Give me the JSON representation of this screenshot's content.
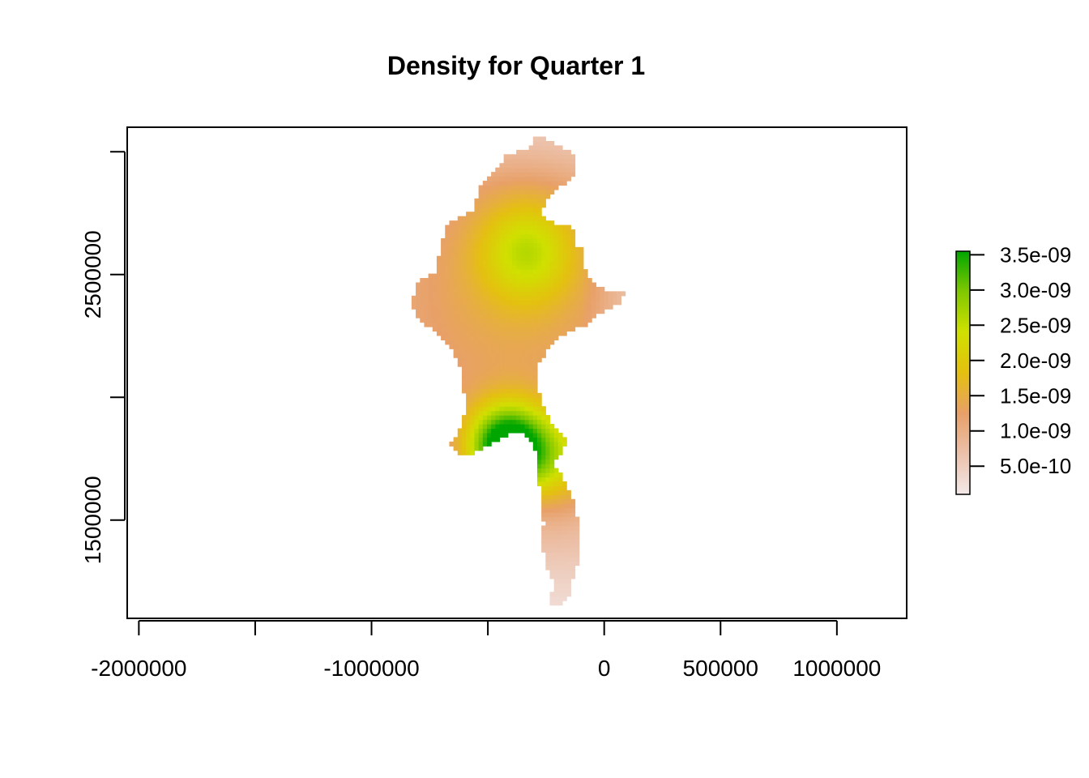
{
  "chart_data": {
    "type": "heatmap",
    "title": "Density for Quarter 1",
    "xlabel": "",
    "ylabel": "",
    "xlim": [
      -2050000,
      1300000
    ],
    "ylim": [
      1100000,
      3100000
    ],
    "x_ticks": [
      -2000000,
      -1500000,
      -1000000,
      -500000,
      0,
      500000,
      1000000
    ],
    "x_tick_labels": [
      "-2000000",
      "",
      "-1000000",
      "",
      "0",
      "500000",
      "1000000"
    ],
    "y_ticks": [
      1500000,
      2000000,
      2500000,
      3000000
    ],
    "y_tick_labels": [
      "1500000",
      "",
      "2500000",
      ""
    ],
    "legend": {
      "position": "right",
      "min": 1e-10,
      "max": 3.55e-09,
      "ticks": [
        5e-10,
        1e-09,
        1.5e-09,
        2e-09,
        2.5e-09,
        3e-09,
        3.5e-09
      ],
      "tick_labels": [
        "5.0e-10",
        "1.0e-09",
        "1.5e-09",
        "2.0e-09",
        "2.5e-09",
        "3.0e-09",
        "3.5e-09"
      ],
      "colors": [
        "#f2e8e8",
        "#ecc1aa",
        "#e8a068",
        "#e4c010",
        "#d0e000",
        "#80c800",
        "#00a600"
      ]
    },
    "grid": false
  }
}
